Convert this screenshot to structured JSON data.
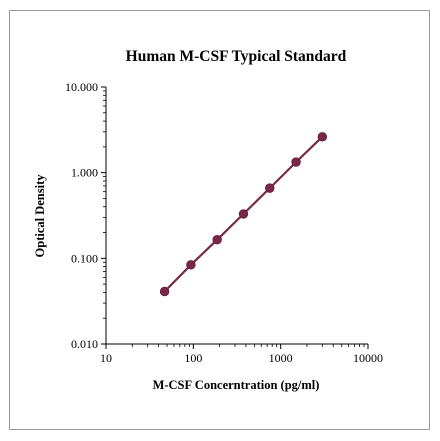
{
  "chart_data": {
    "type": "scatter",
    "title": "Human M-CSF Typical Standard",
    "xlabel": "M-CSF Concerntration (pg/ml)",
    "ylabel": "Optical Density",
    "x_scale": "log",
    "y_scale": "log",
    "xlim": [
      10,
      10000
    ],
    "ylim": [
      0.01,
      10
    ],
    "x_ticks": [
      "10",
      "100",
      "1000",
      "10000"
    ],
    "y_ticks": [
      "10.000",
      "1.000",
      "0.100",
      "0.010"
    ],
    "grid": false,
    "legend": "none",
    "series": [
      {
        "x": [
          46.88,
          93.75,
          187.5,
          375,
          750,
          1500,
          3000
        ],
        "y": [
          0.041,
          0.084,
          0.165,
          0.33,
          0.66,
          1.33,
          2.62
        ]
      }
    ],
    "colors": {
      "marker": "#7a2848",
      "line": "#7a2848"
    }
  }
}
